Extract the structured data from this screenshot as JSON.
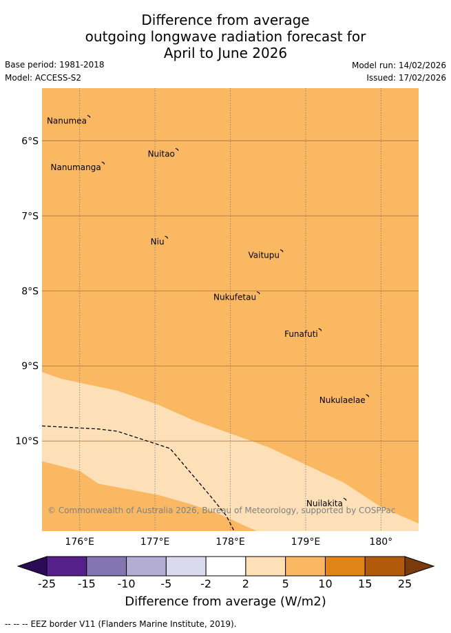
{
  "title": {
    "line1": "Difference from average",
    "line2": "outgoing longwave radiation forecast for",
    "line3": "April to June 2026"
  },
  "meta": {
    "base_period": "Base period: 1981-2018",
    "model": "Model: ACCESS-S2",
    "model_run": "Model run: 14/02/2026",
    "issued": "Issued: 17/02/2026"
  },
  "map": {
    "lon_range": [
      175.5,
      180.5
    ],
    "lat_range": [
      -11.2,
      -5.3
    ],
    "lon_ticks": [
      {
        "value": 176,
        "label": "176°E"
      },
      {
        "value": 177,
        "label": "177°E"
      },
      {
        "value": 178,
        "label": "178°E"
      },
      {
        "value": 179,
        "label": "179°E"
      },
      {
        "value": 180,
        "label": "180°"
      }
    ],
    "lat_ticks": [
      {
        "value": -6,
        "label": "6°S"
      },
      {
        "value": -7,
        "label": "7°S"
      },
      {
        "value": -8,
        "label": "8°S"
      },
      {
        "value": -9,
        "label": "9°S"
      },
      {
        "value": -10,
        "label": "10°S"
      }
    ],
    "background_category": "5 to 10",
    "background_color": "#fbb862",
    "light_band": {
      "category": "2 to 5",
      "color": "#fde0b8",
      "upper_edge": [
        [
          175.5,
          -9.08
        ],
        [
          175.75,
          -9.17
        ],
        [
          176.5,
          -9.33
        ],
        [
          177.05,
          -9.52
        ],
        [
          177.5,
          -9.72
        ],
        [
          178.5,
          -10.08
        ],
        [
          179.5,
          -10.55
        ],
        [
          180.0,
          -10.88
        ],
        [
          180.5,
          -11.1
        ]
      ],
      "lower_edge": [
        [
          175.5,
          -10.27
        ],
        [
          176.0,
          -10.4
        ],
        [
          176.25,
          -10.57
        ],
        [
          177.05,
          -10.72
        ],
        [
          177.5,
          -10.85
        ],
        [
          177.8,
          -10.95
        ],
        [
          178.35,
          -11.2
        ]
      ]
    },
    "eez_border": [
      [
        175.5,
        -9.8
      ],
      [
        176.25,
        -9.84
      ],
      [
        176.5,
        -9.87
      ],
      [
        177.2,
        -10.1
      ],
      [
        177.75,
        -10.75
      ],
      [
        177.95,
        -11.0
      ],
      [
        178.05,
        -11.2
      ]
    ],
    "islands": [
      {
        "name": "Nanumea",
        "lon": 176.13,
        "lat": -5.68
      },
      {
        "name": "Nuitao",
        "lon": 177.3,
        "lat": -6.12
      },
      {
        "name": "Nanumanga",
        "lon": 176.32,
        "lat": -6.3
      },
      {
        "name": "Niu",
        "lon": 177.16,
        "lat": -7.29
      },
      {
        "name": "Vaitupu",
        "lon": 178.69,
        "lat": -7.47
      },
      {
        "name": "Nukufetau",
        "lon": 178.38,
        "lat": -8.03
      },
      {
        "name": "Funafuti",
        "lon": 179.2,
        "lat": -8.52
      },
      {
        "name": "Nukulaelae",
        "lon": 179.83,
        "lat": -9.4
      },
      {
        "name": "Nuilakita",
        "lon": 179.53,
        "lat": -10.78
      }
    ],
    "copyright": "© Commonwealth of Australia 2026, Bureau of Meteorology, supported by COSPPac"
  },
  "colorbar": {
    "title": "Difference from average (W/m2)",
    "labels": [
      "-25",
      "-15",
      "-10",
      "-5",
      "-2",
      "2",
      "5",
      "10",
      "15",
      "25"
    ],
    "under_color": "#2d0a55",
    "over_color": "#7a3a0c",
    "colors": [
      "#56208a",
      "#8275b0",
      "#b3acd3",
      "#dadaec",
      "#ffffff",
      "#fde0b8",
      "#fbb862",
      "#e18417",
      "#b25a0a"
    ]
  },
  "footer": {
    "legend_marker": "--  --  --",
    "legend_text": "EEZ border V11 (Flanders Marine Institute, 2019)."
  }
}
